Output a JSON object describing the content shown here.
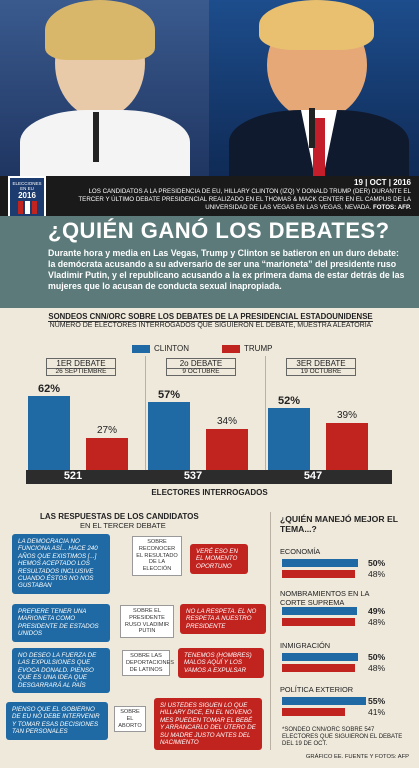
{
  "header": {
    "badge_line1": "ELECCIONES",
    "badge_line2": "EN EU",
    "badge_year": "2016",
    "date": "19 | OCT | 2016",
    "caption": "LOS CANDIDATOS A LA PRESIDENCIA DE EU, HILLARY CLINTON (IZQ) Y DONALD TRUMP (DER) DURANTE EL TERCER Y ÚLTIMO DEBATE PRESIDENCIAL REALIZADO EN EL THOMAS & MACK CENTER EN EL CAMPUS DE LA UNIVERSIDAD DE LAS VEGAS EN LAS VEGAS, NEVADA.",
    "photo_credit": "FOTOS: AFP."
  },
  "hero": {
    "title": "¿QUIÉN GANÓ LOS DEBATES?",
    "lead": "Durante hora y media en Las Vegas, Trump y Clinton se batieron en un duro debate: la demócrata acusando a su adversario de ser una “marioneta” del presidente ruso Vladimir Putin, y el republicano acusando a la ex primera dama de estar detrás de las mujeres que lo acusan de conducta sexual inapropiada."
  },
  "colors": {
    "clinton": "#1f6aa4",
    "trump": "#c1231f"
  },
  "chart_data": [
    {
      "type": "bar",
      "title": "SONDEOS CNN/ORC SOBRE LOS DEBATES DE LA PRESIDENCIAL ESTADOUNIDENSE",
      "subtitle": "NÚMERO DE ELECTORES INTERROGADOS QUE SIGUIERON EL DEBATE, MUESTRA ALEATORIA",
      "xlabel": "ELECTORES INTERROGADOS",
      "categories": [
        "1ER DEBATE",
        "2o DEBATE",
        "3ER DEBATE"
      ],
      "dates": [
        "26 SEPTIEMBRE",
        "9 OCTUBRE",
        "19 OCTUBRE"
      ],
      "sample": [
        "521",
        "537",
        "547"
      ],
      "series": [
        {
          "name": "CLINTON",
          "values": [
            62,
            57,
            52
          ]
        },
        {
          "name": "TRUMP",
          "values": [
            27,
            34,
            39
          ]
        }
      ],
      "ylim": [
        0,
        100
      ]
    },
    {
      "type": "bar",
      "title": "¿QUIÉN MANEJÓ MEJOR EL TEMA...?",
      "categories": [
        "ECONOMÍA",
        "NOMBRAMIENTOS EN LA CORTE SUPREMA",
        "INMIGRACIÓN",
        "POLÍTICA EXTERIOR"
      ],
      "series": [
        {
          "name": "CLINTON",
          "values": [
            50,
            49,
            50,
            55
          ]
        },
        {
          "name": "TRUMP",
          "values": [
            48,
            48,
            48,
            41
          ]
        }
      ],
      "footnote": "*SONDEO CNN/ORC SOBRE 547 ELECTORES QUE SIGUIERON EL DEBATE DEL 19 DE OCT."
    }
  ],
  "answers": {
    "title": "LAS RESPUESTAS DE LOS CANDIDATOS",
    "subtitle": "EN EL TERCER DEBATE",
    "items": [
      {
        "clinton": "LA DEMOCRACIA NO FUNCIONA ASÍ... HACE 240 AÑOS QUE EXISTIMOS [...] HEMOS ACEPTADO LOS RESULTADOS INCLUSIVE CUANDO ÉSTOS NO NOS GUSTABAN",
        "topic": "SOBRE RECONOCER EL RESULTADO DE LA ELECCIÓN",
        "trump": "VERÉ ESO EN EL MOMENTO OPORTUNO"
      },
      {
        "clinton": "PREFIERE TENER UNA MARIONETA COMO PRESIDENTE DE ESTADOS UNIDOS",
        "topic": "SOBRE EL PRESIDENTE RUSO VLADIMIR PUTIN",
        "trump": "NO LA RESPETA. EL NO RESPETA A NUESTRO PRESIDENTE"
      },
      {
        "clinton": "NO DESEO LA FUERZA DE LAS EXPULSIONES QUE EVOCA DONALD. PIENSO QUE ES UNA IDEA QUE DESGARRARÁ AL PAÍS",
        "topic": "SOBRE LAS DEPORTACIONES DE LATINOS",
        "trump": "TENEMOS (HOMBRES) MALOS AQUÍ Y LOS VAMOS A EXPULSAR"
      },
      {
        "clinton": "PIENSO QUE EL GOBIERNO DE EU NO DEBE INTERVENIR Y TOMAR ESAS DECISIONES TAN PERSONALES",
        "topic": "SOBRE EL ABORTO",
        "trump": "SI USTEDES SIGUEN LO QUE HILLARY DICE, EN EL NOVENO MES PUEDEN TOMAR EL BEBÉ Y ARRANCARLO DEL ÚTERO DE SU MADRE JUSTO ANTES DEL NACIMIENTO"
      }
    ]
  },
  "credit": "GRÁFICO EE. FUENTE Y FOTOS: AFP"
}
